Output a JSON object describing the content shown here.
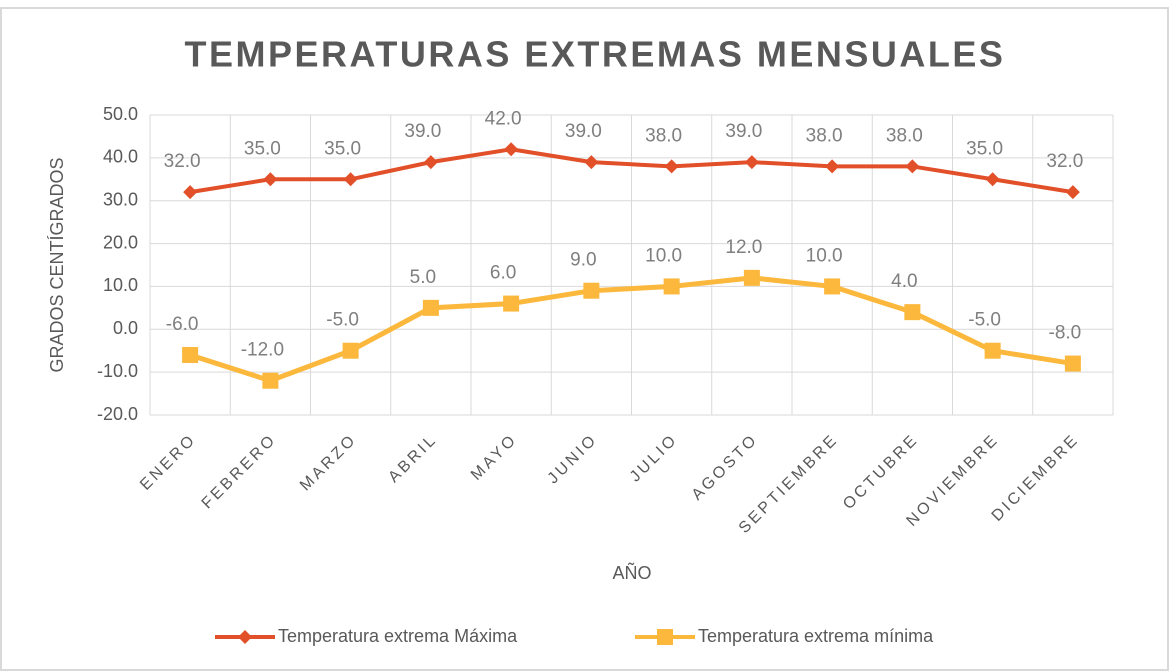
{
  "chart_data": {
    "type": "line",
    "title": "TEMPERATURAS EXTREMAS MENSUALES",
    "x_label": "AÑO",
    "y_label": "GRADOS CENTÍGRADOS",
    "categories": [
      "ENERO",
      "FEBRERO",
      "MARZO",
      "ABRIL",
      "MAYO",
      "JUNIO",
      "JULIO",
      "AGOSTO",
      "SEPTIEMBRE",
      "OCTUBRE",
      "NOVIEMBRE",
      "DICIEMBRE"
    ],
    "series": [
      {
        "name": "Temperatura extrema Máxima",
        "color": "#e2502a",
        "marker": "diamond",
        "values": [
          32,
          35,
          35,
          39,
          42,
          39,
          38,
          39,
          38,
          38,
          35,
          32
        ],
        "value_labels": [
          "32.0",
          "35.0",
          "35.0",
          "39.0",
          "42.0",
          "39.0",
          "38.0",
          "39.0",
          "38.0",
          "38.0",
          "35.0",
          "32.0"
        ]
      },
      {
        "name": "Temperatura extrema mínima",
        "color": "#fbb83c",
        "marker": "square",
        "values": [
          -6,
          -12,
          -5,
          5,
          6,
          9,
          10,
          12,
          10,
          4,
          -5,
          -8
        ],
        "value_labels": [
          "-6.0",
          "-12.0",
          "-5.0",
          "5.0",
          "6.0",
          "9.0",
          "10.0",
          "12.0",
          "10.0",
          "4.0",
          "-5.0",
          "-8.0"
        ]
      }
    ],
    "ylim": [
      -20,
      50
    ],
    "yticks": [
      {
        "value": -20,
        "label": "-20.0"
      },
      {
        "value": -10,
        "label": "-10.0"
      },
      {
        "value": 0,
        "label": "0.0"
      },
      {
        "value": 10,
        "label": "10.0"
      },
      {
        "value": 20,
        "label": "20.0"
      },
      {
        "value": 30,
        "label": "30.0"
      },
      {
        "value": 40,
        "label": "40.0"
      },
      {
        "value": 50,
        "label": "50.0"
      }
    ],
    "grid": true,
    "legend": "bottom"
  }
}
